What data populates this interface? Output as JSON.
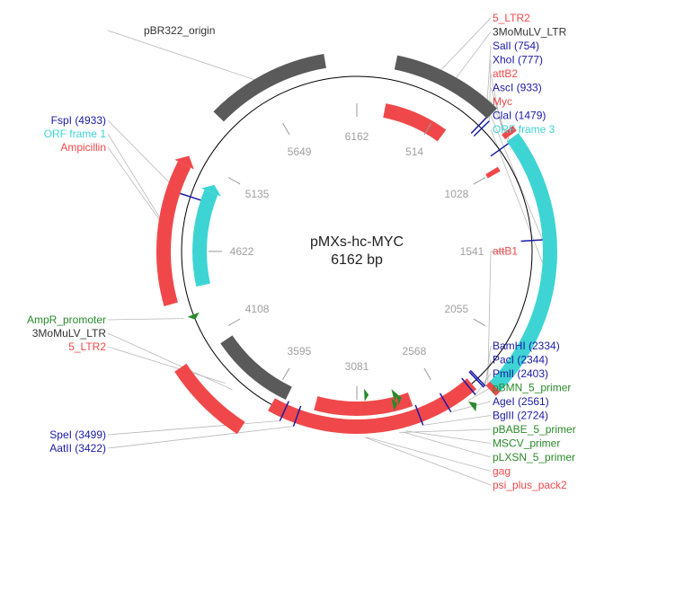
{
  "plasmid": {
    "name": "pMXs-hc-MYC",
    "size_label": "6162 bp",
    "length": 6162
  },
  "colors": {
    "enzyme": "#1a1aa6",
    "promoter": "#2a8a2a",
    "primer": "#2a8a2a",
    "feature_red": "#f0484a",
    "orf": "#3ed4d4",
    "gray": "#5a5a5a",
    "backbone": "#000000",
    "leader": "#b8b8b8",
    "tick_text": "#a0a0a0",
    "ltr_text": "#333333"
  },
  "ticks": [
    {
      "pos": 0,
      "label": "6162"
    },
    {
      "pos": 514,
      "label": "514"
    },
    {
      "pos": 1028,
      "label": "1028"
    },
    {
      "pos": 1541,
      "label": "1541"
    },
    {
      "pos": 2055,
      "label": "2055"
    },
    {
      "pos": 2568,
      "label": "2568"
    },
    {
      "pos": 3081,
      "label": "3081"
    },
    {
      "pos": 3595,
      "label": "3595"
    },
    {
      "pos": 4108,
      "label": "4108"
    },
    {
      "pos": 4622,
      "label": "4622"
    },
    {
      "pos": 5135,
      "label": "5135"
    },
    {
      "pos": 5649,
      "label": "5649"
    }
  ],
  "features": [
    {
      "name": "pBR322_origin",
      "start": 5380,
      "end": 6000,
      "type": "gray",
      "track": "outer",
      "arrow": false
    },
    {
      "name": "3MoMuLV_LTR",
      "start": 200,
      "end": 760,
      "type": "gray",
      "track": "outer",
      "arrow": false
    },
    {
      "name": "5_LTR2",
      "start": 190,
      "end": 620,
      "type": "feature_red",
      "track": "mid",
      "arrow": false
    },
    {
      "name": "Ampicillin",
      "start": 4350,
      "end": 5080,
      "type": "feature_red",
      "track": "outer",
      "arrow": true,
      "dir": -1
    },
    {
      "name": "ORF frame 1",
      "start": 4410,
      "end": 5000,
      "type": "orf",
      "track": "inner",
      "arrow": true,
      "dir": -1
    },
    {
      "name": "ORF frame 3",
      "start": 920,
      "end": 2310,
      "type": "orf",
      "track": "outer",
      "arrow": false
    },
    {
      "name": "3MoMuLV_LTR",
      "start": 3520,
      "end": 4040,
      "type": "gray",
      "track": "inner",
      "arrow": false
    },
    {
      "name": "5_LTR2",
      "start": 3650,
      "end": 4050,
      "type": "feature_red",
      "track": "far",
      "arrow": false
    },
    {
      "name": "gag",
      "start": 2380,
      "end": 3580,
      "type": "feature_red",
      "track": "backbone",
      "arrow": false
    },
    {
      "name": "psi_plus_pack2",
      "start": 2740,
      "end": 3340,
      "type": "feature_red",
      "track": "inner",
      "arrow": false
    },
    {
      "name": "Myc",
      "start": 1010,
      "end": 1040,
      "type": "feature_red",
      "track": "inner",
      "arrow": false
    },
    {
      "name": "attB2",
      "start": 875,
      "end": 905,
      "type": "feature_red",
      "track": "outer",
      "arrow": false
    },
    {
      "name": "attB1",
      "start": 2300,
      "end": 2330,
      "type": "feature_red",
      "track": "outer",
      "arrow": false
    }
  ],
  "markers": [
    {
      "name": "AmpR_promoter",
      "pos": 4260,
      "type": "promoter",
      "track": "backbone"
    },
    {
      "name": "pBMN_5_primer",
      "pos": 2455,
      "type": "primer",
      "track": "outer"
    },
    {
      "name": "pBABE_5_primer",
      "pos": 2855,
      "type": "primer",
      "track": "inner"
    },
    {
      "name": "MSCV_primer",
      "pos": 2820,
      "type": "primer",
      "track": "inner2"
    },
    {
      "name": "pLXSN_5_primer",
      "pos": 2840,
      "type": "primer",
      "track": "inner3"
    },
    {
      "name": "gag",
      "pos": 3030,
      "type": "primer",
      "track": "inner4"
    }
  ],
  "sites": [
    {
      "label": "SalI  (754)",
      "pos": 754
    },
    {
      "label": "XhoI  (777)",
      "pos": 777
    },
    {
      "label": "AscI  (933)",
      "pos": 933
    },
    {
      "label": "ClaI  (1479)",
      "pos": 1479
    },
    {
      "label": "BamHI  (2334)",
      "pos": 2334
    },
    {
      "label": "PacI  (2344)",
      "pos": 2344
    },
    {
      "label": "PmlI  (2403)",
      "pos": 2403
    },
    {
      "label": "AgeI  (2561)",
      "pos": 2561
    },
    {
      "label": "BglII  (2724)",
      "pos": 2724
    },
    {
      "label": "AatII  (3422)",
      "pos": 3422
    },
    {
      "label": "SpeI  (3499)",
      "pos": 3499
    },
    {
      "label": "FspI  (4933)",
      "pos": 4933
    }
  ],
  "labels": [
    {
      "text": "5_LTR2",
      "type": "feature_red",
      "side": "right",
      "target": 400
    },
    {
      "text": "3MoMuLV_LTR",
      "type": "ltr_text",
      "side": "right",
      "target": 500
    },
    {
      "text": "SalI  (754)",
      "type": "enzyme",
      "side": "right",
      "target": 754
    },
    {
      "text": "XhoI  (777)",
      "type": "enzyme",
      "side": "right",
      "target": 777
    },
    {
      "text": "attB2",
      "type": "feature_red",
      "side": "right",
      "target": 890
    },
    {
      "text": "AscI  (933)",
      "type": "enzyme",
      "side": "right",
      "target": 933
    },
    {
      "text": "Myc",
      "type": "feature_red",
      "side": "right",
      "target": 1025
    },
    {
      "text": "ClaI  (1479)",
      "type": "enzyme",
      "side": "right",
      "target": 1479
    },
    {
      "text": "ORF frame 3",
      "type": "orf",
      "side": "right",
      "target": 1600
    },
    {
      "text": "attB1",
      "type": "feature_red",
      "side": "right",
      "target": 2315
    },
    {
      "text": "BamHI  (2334)",
      "type": "enzyme",
      "side": "right",
      "target": 2334
    },
    {
      "text": "PacI  (2344)",
      "type": "enzyme",
      "side": "right",
      "target": 2344
    },
    {
      "text": "PmlI  (2403)",
      "type": "enzyme",
      "side": "right",
      "target": 2403
    },
    {
      "text": "pBMN_5_primer",
      "type": "primer",
      "side": "right",
      "target": 2455
    },
    {
      "text": "AgeI  (2561)",
      "type": "enzyme",
      "side": "right",
      "target": 2561
    },
    {
      "text": "BglII  (2724)",
      "type": "enzyme",
      "side": "right",
      "target": 2724
    },
    {
      "text": "pBABE_5_primer",
      "type": "primer",
      "side": "right",
      "target": 2855
    },
    {
      "text": "MSCV_primer",
      "type": "primer",
      "side": "right",
      "target": 2820
    },
    {
      "text": "pLXSN_5_primer",
      "type": "primer",
      "side": "right",
      "target": 2840
    },
    {
      "text": "gag",
      "type": "feature_red",
      "side": "right",
      "target": 3030
    },
    {
      "text": "psi_plus_pack2",
      "type": "feature_red",
      "side": "right",
      "target": 3040
    },
    {
      "text": "SpeI  (3499)",
      "type": "enzyme",
      "side": "left",
      "target": 3499
    },
    {
      "text": "AatII  (3422)",
      "type": "enzyme",
      "side": "left",
      "target": 3422
    },
    {
      "text": "AmpR_promoter",
      "type": "promoter",
      "side": "left",
      "target": 4260
    },
    {
      "text": "3MoMuLV_LTR",
      "type": "ltr_text",
      "side": "left",
      "target": 3800
    },
    {
      "text": "5_LTR2",
      "type": "feature_red",
      "side": "left",
      "target": 3850
    },
    {
      "text": "FspI  (4933)",
      "type": "enzyme",
      "side": "left",
      "target": 4933
    },
    {
      "text": "ORF frame 1",
      "type": "orf",
      "side": "left",
      "target": 4700
    },
    {
      "text": "Ampicillin",
      "type": "feature_red",
      "side": "left",
      "target": 4700
    },
    {
      "text": "pBR322_origin",
      "type": "ltr_text",
      "side": "left",
      "target": 5700
    }
  ]
}
